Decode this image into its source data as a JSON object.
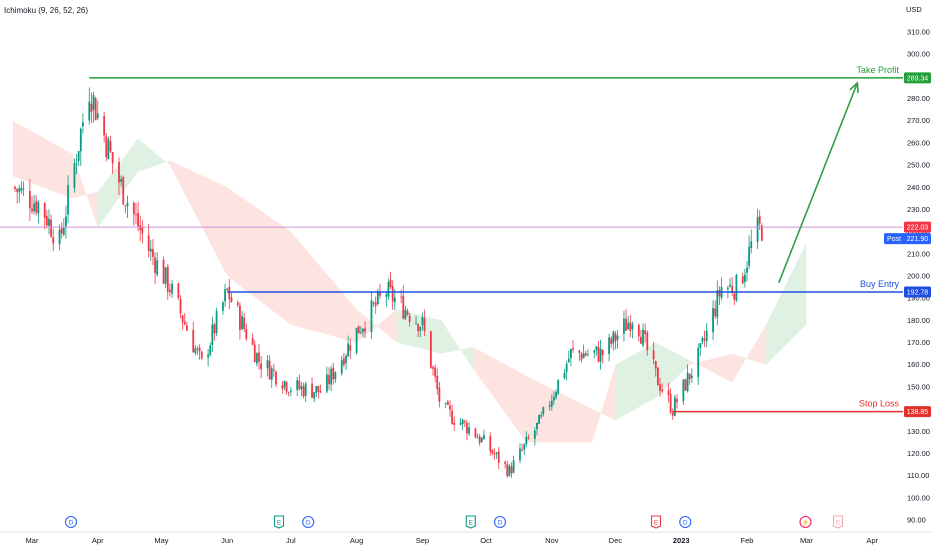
{
  "indicator_label": "Ichimoku (9, 26, 52, 26)",
  "currency": "USD",
  "colors": {
    "up": "#089981",
    "down": "#f23645",
    "take_profit": "#22a03a",
    "buy_entry": "#1e4fe0",
    "stop_loss": "#e0312f",
    "current_price_line": "#ce93d8",
    "post_badge": "#2962ff",
    "cloud_bull": "#dcefe0",
    "cloud_bear": "#fde1dd",
    "arrow": "#2f9e45"
  },
  "levels": {
    "take_profit": {
      "name": "Take Profit",
      "value": 289.34,
      "label": "289.34"
    },
    "buy_entry": {
      "name": "Buy Entry",
      "value": 192.78,
      "label": "192.78"
    },
    "stop_loss": {
      "name": "Stop Loss",
      "value": 138.85,
      "label": "138.85"
    },
    "current": {
      "value": 222.03,
      "label": "222.03"
    },
    "post": {
      "name": "Post",
      "value": 221.9,
      "label": "221.90"
    }
  },
  "events": [
    {
      "kind": "dividend",
      "text": "D",
      "month_pos": 0.6
    },
    {
      "kind": "earnings",
      "text": "E",
      "month_pos": 3.8
    },
    {
      "kind": "dividend",
      "text": "D",
      "month_pos": 4.25
    },
    {
      "kind": "earnings",
      "text": "E",
      "month_pos": 6.75
    },
    {
      "kind": "dividend",
      "text": "D",
      "month_pos": 7.2
    },
    {
      "kind": "earnings-bad",
      "text": "E",
      "month_pos": 9.6
    },
    {
      "kind": "dividend",
      "text": "D",
      "month_pos": 10.05
    },
    {
      "kind": "split",
      "text": "⚡",
      "month_pos": 11.9
    },
    {
      "kind": "earnings-future",
      "text": "E",
      "month_pos": 12.4
    }
  ],
  "chart_data": {
    "type": "candlestick",
    "title": "",
    "xlabel": "",
    "ylabel": "USD",
    "ylim": [
      90,
      320
    ],
    "y_ticks": [
      90,
      100,
      110,
      120,
      130,
      140,
      150,
      160,
      170,
      180,
      190,
      200,
      210,
      220,
      230,
      240,
      250,
      260,
      270,
      280,
      290,
      300,
      310
    ],
    "y_tick_labels": [
      "90.00",
      "100.00",
      "110.00",
      "120.00",
      "130.00",
      "140.00",
      "150.00",
      "160.00",
      "170.00",
      "180.00",
      "190.00",
      "200.00",
      "210.00",
      "220.00",
      "230.00",
      "240.00",
      "250.00",
      "260.00",
      "270.00",
      "280.00",
      "290.00",
      "300.00",
      "310.00"
    ],
    "x_tick_labels": [
      "Mar",
      "Apr",
      "May",
      "Jun",
      "Jul",
      "Aug",
      "Sep",
      "Oct",
      "Nov",
      "Dec",
      "2023",
      "Feb",
      "Mar",
      "Apr"
    ],
    "price_path": [
      {
        "t": "2022-02-20",
        "close": 240
      },
      {
        "t": "2022-03-05",
        "close": 232
      },
      {
        "t": "2022-03-14",
        "close": 215
      },
      {
        "t": "2022-03-28",
        "close": 285
      },
      {
        "t": "2022-04-10",
        "close": 245
      },
      {
        "t": "2022-04-25",
        "close": 212
      },
      {
        "t": "2022-05-05",
        "close": 195
      },
      {
        "t": "2022-05-20",
        "close": 160
      },
      {
        "t": "2022-06-01",
        "close": 193
      },
      {
        "t": "2022-06-16",
        "close": 162
      },
      {
        "t": "2022-07-01",
        "close": 150
      },
      {
        "t": "2022-07-16",
        "close": 148
      },
      {
        "t": "2022-08-01",
        "close": 175
      },
      {
        "t": "2022-08-15",
        "close": 193
      },
      {
        "t": "2022-09-01",
        "close": 178
      },
      {
        "t": "2022-09-10",
        "close": 140
      },
      {
        "t": "2022-09-25",
        "close": 130
      },
      {
        "t": "2022-10-12",
        "close": 112
      },
      {
        "t": "2022-10-27",
        "close": 135
      },
      {
        "t": "2022-11-10",
        "close": 165
      },
      {
        "t": "2022-11-25",
        "close": 165
      },
      {
        "t": "2022-12-10",
        "close": 183
      },
      {
        "t": "2022-12-20",
        "close": 155
      },
      {
        "t": "2022-12-28",
        "close": 140
      },
      {
        "t": "2023-01-10",
        "close": 165
      },
      {
        "t": "2023-01-20",
        "close": 195
      },
      {
        "t": "2023-01-28",
        "close": 195
      },
      {
        "t": "2023-02-05",
        "close": 220
      },
      {
        "t": "2023-02-09",
        "close": 222
      }
    ],
    "cloud": [
      {
        "t": "2022-02-20",
        "a": 245,
        "b": 270,
        "trend": "bear"
      },
      {
        "t": "2022-03-20",
        "a": 235,
        "b": 255,
        "trend": "bear"
      },
      {
        "t": "2022-04-01",
        "a": 238,
        "b": 222,
        "trend": "bull"
      },
      {
        "t": "2022-04-20",
        "a": 262,
        "b": 247,
        "trend": "bull"
      },
      {
        "t": "2022-05-05",
        "a": 250,
        "b": 252,
        "trend": "bear"
      },
      {
        "t": "2022-06-01",
        "a": 200,
        "b": 240,
        "trend": "bear"
      },
      {
        "t": "2022-07-01",
        "a": 178,
        "b": 220,
        "trend": "bear"
      },
      {
        "t": "2022-08-01",
        "a": 170,
        "b": 185,
        "trend": "bear"
      },
      {
        "t": "2022-08-20",
        "a": 185,
        "b": 170,
        "trend": "bull"
      },
      {
        "t": "2022-09-10",
        "a": 180,
        "b": 165,
        "trend": "bull"
      },
      {
        "t": "2022-09-25",
        "a": 158,
        "b": 168,
        "trend": "bear"
      },
      {
        "t": "2022-10-20",
        "a": 125,
        "b": 155,
        "trend": "bear"
      },
      {
        "t": "2022-11-20",
        "a": 125,
        "b": 140,
        "trend": "bear"
      },
      {
        "t": "2022-12-01",
        "a": 160,
        "b": 135,
        "trend": "bull"
      },
      {
        "t": "2022-12-20",
        "a": 170,
        "b": 145,
        "trend": "bull"
      },
      {
        "t": "2023-01-05",
        "a": 162,
        "b": 160,
        "trend": "bear"
      },
      {
        "t": "2023-01-25",
        "a": 152,
        "b": 165,
        "trend": "bear"
      },
      {
        "t": "2023-02-10",
        "a": 178,
        "b": 160,
        "trend": "bull"
      },
      {
        "t": "2023-03-01",
        "a": 215,
        "b": 178,
        "trend": "bull"
      }
    ],
    "projection_arrow": {
      "from": {
        "t": "2023-02-16",
        "value": 197
      },
      "to": {
        "t": "2023-03-25",
        "value": 287
      }
    }
  }
}
